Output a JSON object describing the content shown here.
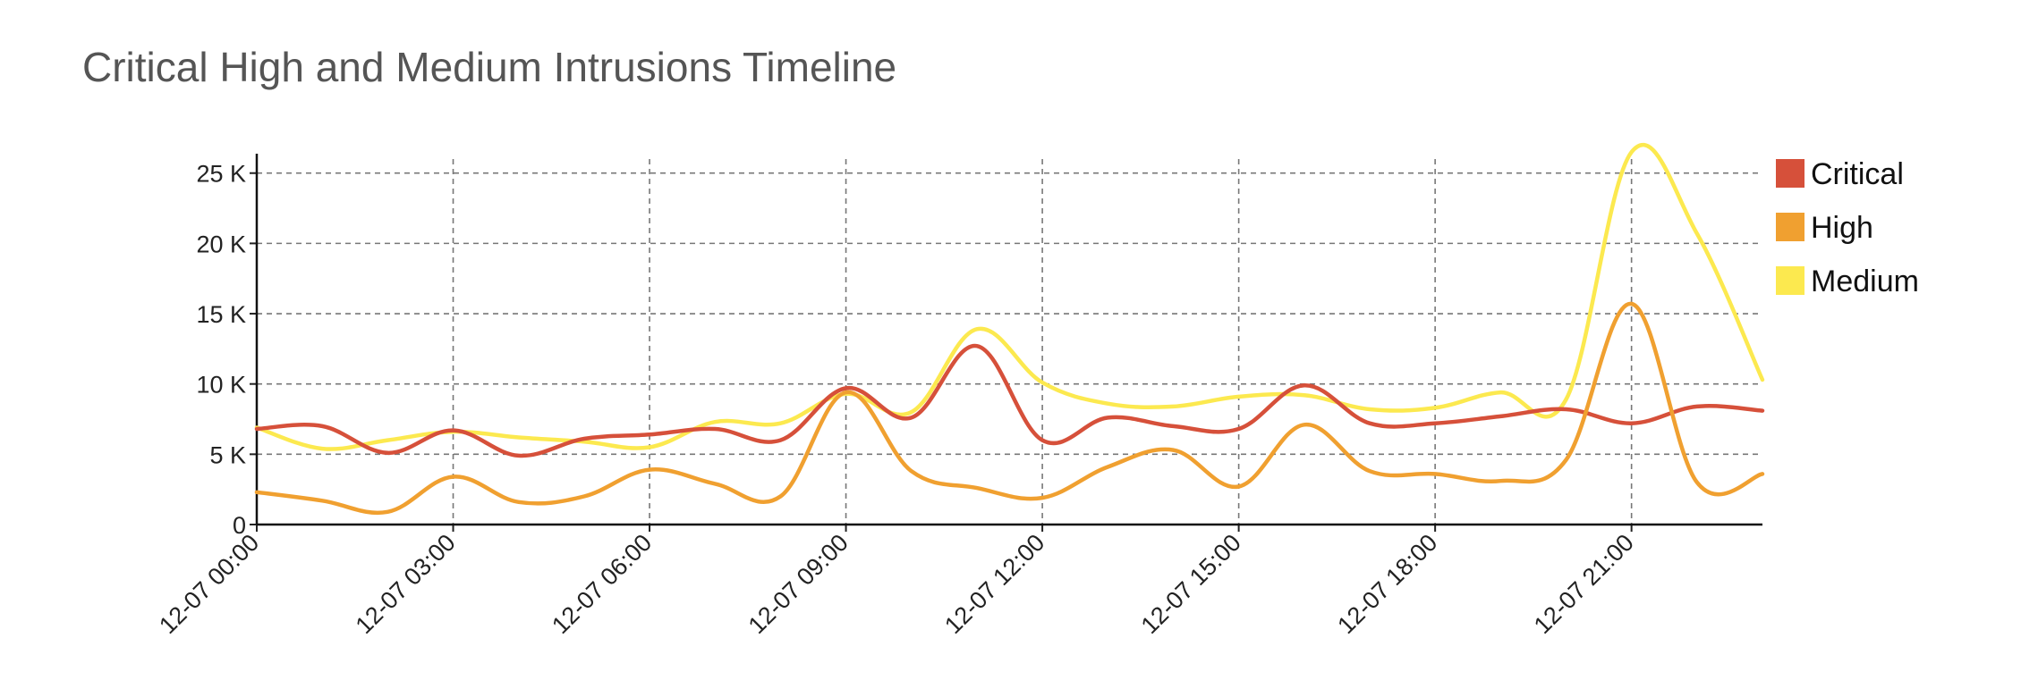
{
  "chart_data": {
    "type": "line",
    "title": "Critical High and Medium Intrusions Timeline",
    "xlabel": "",
    "ylabel": "",
    "x_ticks": [
      "12-07 00:00",
      "12-07 03:00",
      "12-07 06:00",
      "12-07 09:00",
      "12-07 12:00",
      "12-07 15:00",
      "12-07 18:00",
      "12-07 21:00"
    ],
    "y_ticks": [
      {
        "value": 0,
        "label": "0"
      },
      {
        "value": 5000,
        "label": "5 K"
      },
      {
        "value": 10000,
        "label": "10 K"
      },
      {
        "value": 15000,
        "label": "15 K"
      },
      {
        "value": 20000,
        "label": "20 K"
      },
      {
        "value": 25000,
        "label": "25 K"
      }
    ],
    "ylim": [
      0,
      26000
    ],
    "xlim_hours": [
      0,
      23
    ],
    "grid": true,
    "legend_position": "top-right",
    "x_hours": [
      0,
      1,
      2,
      3,
      4,
      5,
      6,
      7,
      8,
      9,
      10,
      11,
      12,
      13,
      14,
      15,
      16,
      17,
      18,
      19,
      20,
      21,
      22,
      23
    ],
    "series": [
      {
        "name": "Critical",
        "color": "#d6503a",
        "values": [
          6800,
          7000,
          5100,
          6700,
          4900,
          6100,
          6400,
          6800,
          6000,
          9700,
          7600,
          12700,
          6000,
          7600,
          7000,
          6800,
          9900,
          7200,
          7200,
          7700,
          8200,
          7200,
          8400,
          8100
        ]
      },
      {
        "name": "High",
        "color": "#f0a030",
        "values": [
          2300,
          1700,
          900,
          3400,
          1600,
          2000,
          3900,
          2900,
          2000,
          9400,
          3800,
          2600,
          1900,
          4100,
          5300,
          2700,
          7100,
          3800,
          3600,
          3100,
          4600,
          15700,
          3000,
          3600
        ]
      },
      {
        "name": "Medium",
        "color": "#fce94f",
        "values": [
          6900,
          5400,
          6000,
          6600,
          6200,
          5900,
          5500,
          7300,
          7200,
          9300,
          8000,
          13900,
          10100,
          8600,
          8400,
          9100,
          9200,
          8200,
          8300,
          9400,
          8900,
          26500,
          20700,
          10300
        ]
      }
    ]
  }
}
